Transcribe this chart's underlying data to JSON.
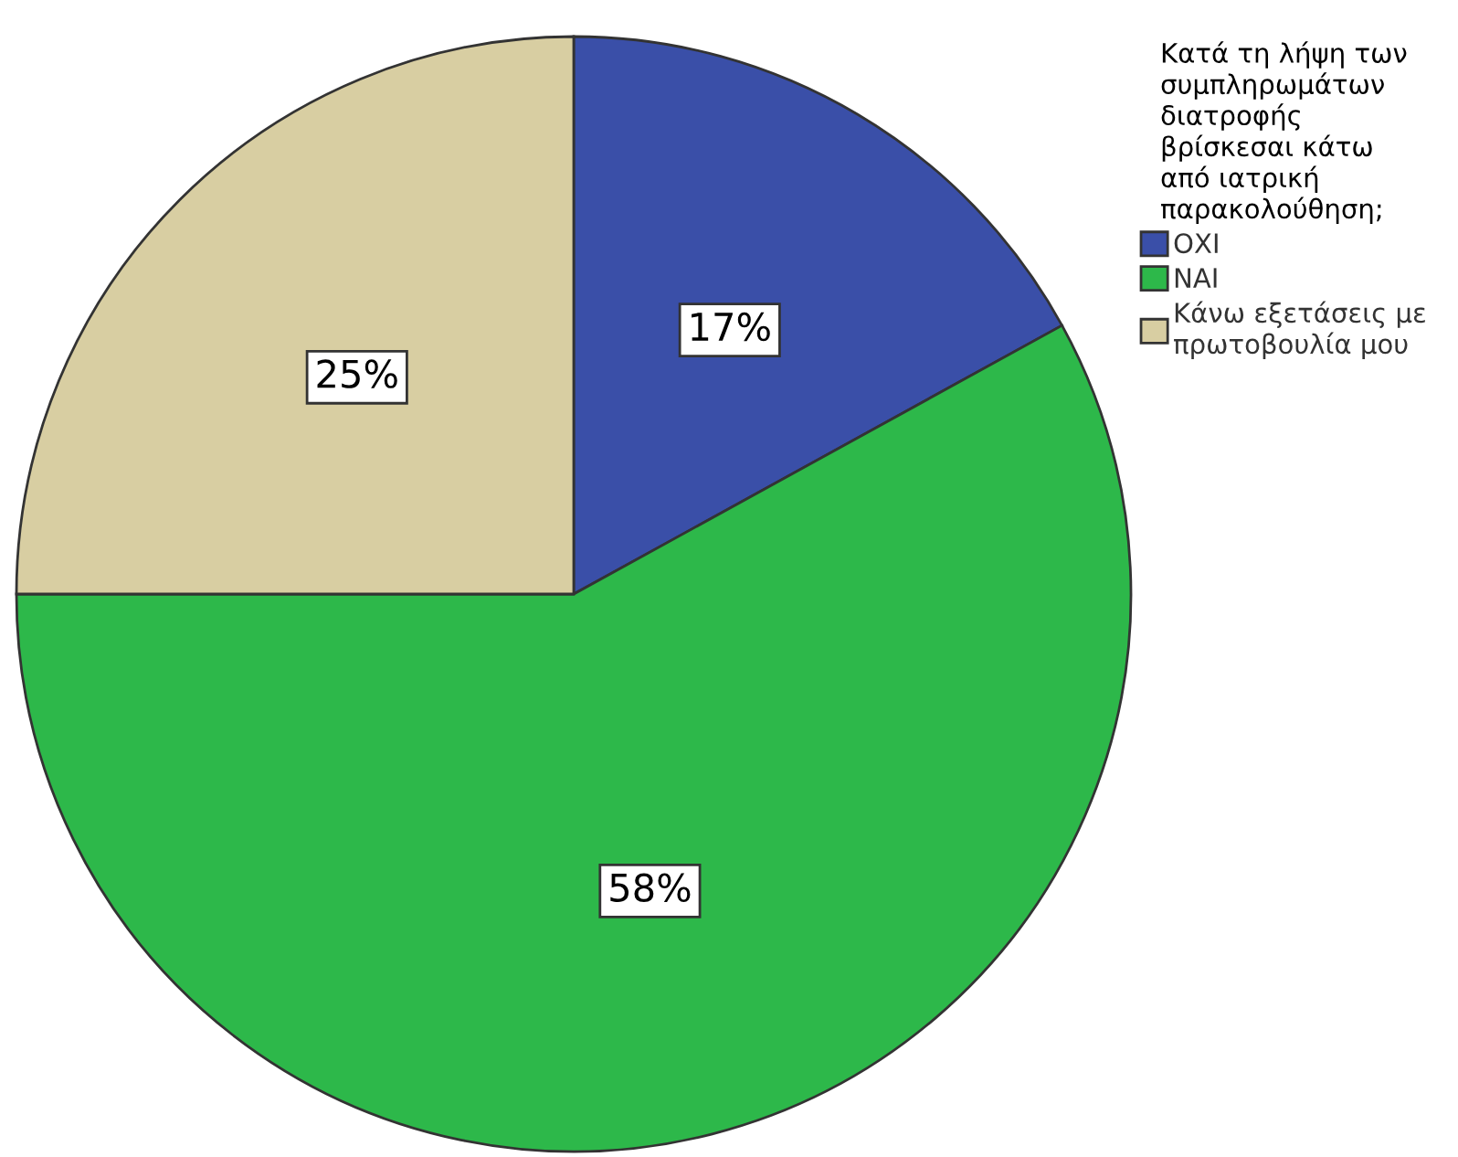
{
  "chart_data": {
    "type": "pie",
    "legend_title": "Κατά τη λήψη των συμπληρωμάτων διατροφής βρίσκεσαι κάτω από ιατρική παρακολούθηση;",
    "categories": [
      "ΟΧΙ",
      "ΝΑΙ",
      "Κάνω εξετάσεις με πρωτοβουλία μου"
    ],
    "values": [
      17,
      58,
      25
    ],
    "colors": [
      "#3a4fa8",
      "#2db84a",
      "#d8cea2"
    ],
    "value_labels": [
      "17%",
      "58%",
      "25%"
    ],
    "legend": "top right"
  }
}
